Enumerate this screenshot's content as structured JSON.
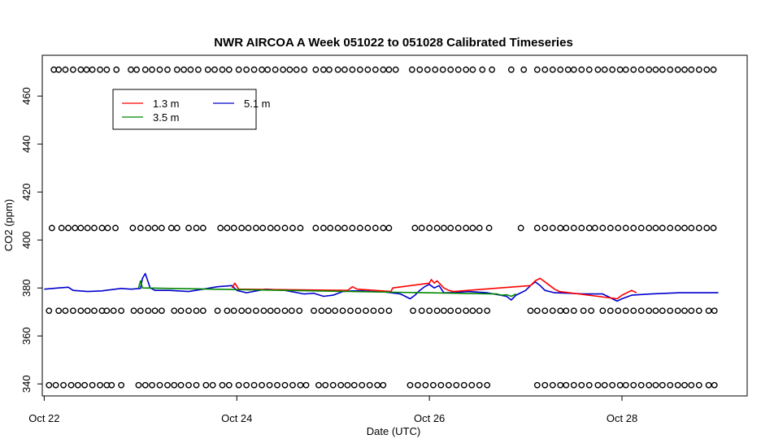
{
  "chart_data": {
    "type": "line",
    "title": "NWR AIRCOA A  Week 051022 to 051028  Calibrated Timeseries",
    "xlabel": "Date (UTC)",
    "ylabel": "CO2 (ppm)",
    "xlim_days": [
      21.98,
      29.3
    ],
    "ylim": [
      335,
      477
    ],
    "x_ticks": [
      {
        "label": "Oct 22",
        "day": 22
      },
      {
        "label": "Oct 24",
        "day": 24
      },
      {
        "label": "Oct 26",
        "day": 26
      },
      {
        "label": "Oct 28",
        "day": 28
      }
    ],
    "y_ticks": [
      340,
      360,
      380,
      400,
      420,
      440,
      460
    ],
    "legend": {
      "placement": "top-left",
      "entries": [
        {
          "name": "1.3 m",
          "color": "#ff0000"
        },
        {
          "name": "5.1 m",
          "color": "#0000cc"
        },
        {
          "name": "3.5 m",
          "color": "#008800"
        }
      ]
    },
    "series": [
      {
        "name": "5.1 m",
        "color": "#0000cc",
        "x": [
          22.0,
          22.15,
          22.25,
          22.3,
          22.45,
          22.6,
          22.8,
          22.9,
          23.0,
          23.02,
          23.05,
          23.1,
          23.15,
          23.3,
          23.5,
          23.65,
          23.8,
          23.95,
          24.0,
          24.1,
          24.3,
          24.5,
          24.7,
          24.8,
          24.9,
          25.0,
          25.1,
          25.2,
          25.3,
          25.4,
          25.5,
          25.6,
          25.7,
          25.8,
          25.85,
          25.9,
          25.95,
          26.0,
          26.05,
          26.1,
          26.15,
          26.2,
          26.3,
          26.4,
          26.6,
          26.8,
          26.85,
          26.9,
          27.0,
          27.05,
          27.1,
          27.15,
          27.2,
          27.3,
          27.45,
          27.6,
          27.8,
          27.85,
          27.9,
          27.95,
          28.0,
          28.1,
          28.3,
          28.6,
          28.9,
          29.0
        ],
        "y": [
          379.5,
          380,
          380.3,
          379,
          378.5,
          378.8,
          379.8,
          379.5,
          379.8,
          384,
          386,
          380,
          379,
          379,
          378.5,
          379.5,
          380.5,
          381,
          379,
          378,
          379.5,
          379,
          377.5,
          377.8,
          376.5,
          377,
          378.5,
          378.8,
          378.8,
          378.5,
          378.5,
          378,
          377.5,
          375.5,
          377,
          379,
          380.5,
          381.5,
          380,
          381,
          378,
          378,
          378.2,
          378.5,
          378,
          376.5,
          375,
          377,
          379,
          381,
          382.5,
          381,
          379,
          378,
          377.8,
          377.5,
          377.5,
          376.5,
          375.5,
          374.5,
          375.5,
          377,
          377.5,
          378,
          378,
          378
        ]
      },
      {
        "name": "1.3 m",
        "color": "#ff0000",
        "x": [
          23.95,
          23.98,
          24.02,
          25.15,
          25.2,
          25.25,
          25.6,
          25.62,
          26.0,
          26.02,
          26.05,
          26.08,
          26.15,
          26.2,
          26.25,
          27.05,
          27.1,
          27.15,
          27.2,
          27.3,
          27.35,
          27.95,
          28.0,
          28.1,
          28.15
        ],
        "y": [
          380,
          382,
          379.5,
          379,
          380.5,
          379.5,
          378.5,
          380,
          382,
          383.5,
          382,
          383,
          380,
          379,
          378.5,
          381,
          383,
          384,
          382.5,
          379.5,
          378.5,
          375.5,
          377,
          379,
          378
        ]
      },
      {
        "name": "3.5 m",
        "color": "#008800",
        "x": [
          22.98,
          23.0,
          23.02,
          26.7,
          26.75,
          26.8,
          26.85,
          26.9
        ],
        "y": [
          380,
          383,
          380,
          377.5,
          377,
          377.2,
          376.5,
          377.5
        ]
      }
    ],
    "markers": [
      {
        "y": 471,
        "x": [
          22.1,
          22.15,
          22.22,
          22.3,
          22.38,
          22.44,
          22.5,
          22.58,
          22.65,
          22.75,
          22.9,
          22.96,
          23.05,
          23.12,
          23.2,
          23.28,
          23.38,
          23.45,
          23.52,
          23.6,
          23.7,
          23.77,
          23.85,
          23.92,
          24.02,
          24.1,
          24.18,
          24.26,
          24.32,
          24.4,
          24.48,
          24.55,
          24.62,
          24.7,
          24.82,
          24.9,
          24.96,
          25.05,
          25.12,
          25.2,
          25.28,
          25.36,
          25.44,
          25.52,
          25.58,
          25.65,
          25.82,
          25.9,
          25.98,
          26.06,
          26.14,
          26.22,
          26.3,
          26.38,
          26.45,
          26.55,
          26.65,
          26.85,
          26.98,
          27.12,
          27.2,
          27.28,
          27.36,
          27.44,
          27.5,
          27.58,
          27.66,
          27.75,
          27.82,
          27.9,
          27.98,
          28.04,
          28.12,
          28.2,
          28.28,
          28.35,
          28.42,
          28.5,
          28.58,
          28.65,
          28.72,
          28.8,
          28.88,
          28.95
        ]
      },
      {
        "y": 405,
        "x": [
          22.08,
          22.18,
          22.25,
          22.32,
          22.38,
          22.45,
          22.52,
          22.6,
          22.66,
          22.74,
          22.92,
          23.0,
          23.08,
          23.15,
          23.22,
          23.32,
          23.38,
          23.5,
          23.58,
          23.65,
          23.83,
          23.9,
          23.97,
          24.05,
          24.12,
          24.2,
          24.27,
          24.35,
          24.42,
          24.5,
          24.58,
          24.66,
          24.82,
          24.9,
          24.97,
          25.05,
          25.12,
          25.2,
          25.28,
          25.36,
          25.44,
          25.52,
          25.58,
          25.85,
          25.92,
          26.0,
          26.08,
          26.15,
          26.22,
          26.3,
          26.38,
          26.45,
          26.52,
          26.62,
          26.95,
          27.12,
          27.2,
          27.28,
          27.36,
          27.42,
          27.5,
          27.58,
          27.66,
          27.72,
          27.8,
          27.88,
          27.96,
          28.04,
          28.12,
          28.2,
          28.28,
          28.35,
          28.42,
          28.5,
          28.58,
          28.65,
          28.72,
          28.8,
          28.88,
          28.95
        ]
      },
      {
        "y": 370.5,
        "x": [
          22.05,
          22.15,
          22.22,
          22.3,
          22.38,
          22.45,
          22.52,
          22.6,
          22.65,
          22.72,
          22.8,
          22.93,
          23.0,
          23.08,
          23.15,
          23.22,
          23.35,
          23.42,
          23.5,
          23.58,
          23.65,
          23.8,
          23.9,
          23.97,
          24.05,
          24.12,
          24.2,
          24.28,
          24.35,
          24.42,
          24.5,
          24.57,
          24.65,
          24.8,
          24.88,
          24.95,
          25.02,
          25.1,
          25.18,
          25.26,
          25.34,
          25.42,
          25.5,
          25.58,
          25.83,
          25.92,
          26.0,
          26.08,
          26.15,
          26.22,
          26.3,
          26.38,
          26.45,
          26.52,
          26.6,
          27.05,
          27.12,
          27.2,
          27.28,
          27.36,
          27.42,
          27.5,
          27.6,
          27.68,
          27.8,
          27.88,
          27.96,
          28.04,
          28.12,
          28.2,
          28.28,
          28.35,
          28.42,
          28.5,
          28.58,
          28.65,
          28.72,
          28.8,
          28.9,
          28.96
        ]
      },
      {
        "y": 339.5,
        "x": [
          22.05,
          22.12,
          22.2,
          22.28,
          22.35,
          22.42,
          22.5,
          22.58,
          22.65,
          22.7,
          22.8,
          22.98,
          23.05,
          23.12,
          23.2,
          23.28,
          23.35,
          23.42,
          23.5,
          23.58,
          23.68,
          23.75,
          23.85,
          23.92,
          24.02,
          24.1,
          24.18,
          24.26,
          24.34,
          24.42,
          24.5,
          24.58,
          24.66,
          24.72,
          24.85,
          24.92,
          25.0,
          25.08,
          25.15,
          25.22,
          25.3,
          25.38,
          25.46,
          25.52,
          25.8,
          25.88,
          25.96,
          26.04,
          26.12,
          26.2,
          26.28,
          26.36,
          26.44,
          26.52,
          26.6,
          27.12,
          27.2,
          27.28,
          27.36,
          27.42,
          27.5,
          27.58,
          27.66,
          27.75,
          27.82,
          27.9,
          27.98,
          28.04,
          28.12,
          28.2,
          28.28,
          28.35,
          28.42,
          28.5,
          28.58,
          28.65,
          28.72,
          28.8,
          28.9,
          28.96
        ]
      }
    ]
  }
}
